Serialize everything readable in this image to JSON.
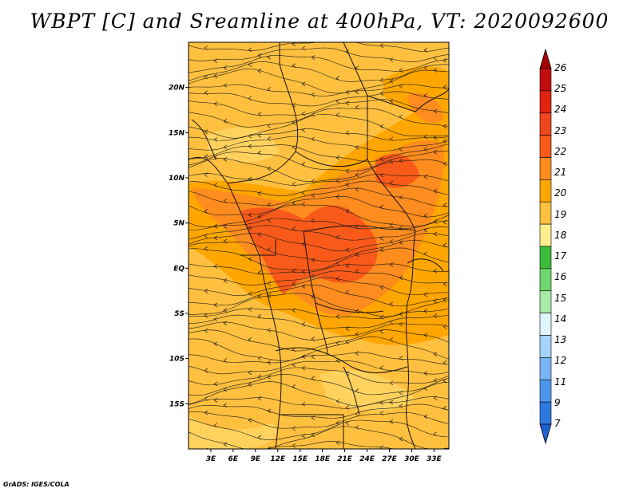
{
  "title": "WBPT [C] and Sreamline at 400hPa, VT: 2020092600",
  "credit": "GrADS: IGES/COLA",
  "map": {
    "lon_range": [
      0,
      35
    ],
    "lat_range": [
      -20,
      25
    ],
    "x_ticks": [
      "3E",
      "6E",
      "9E",
      "12E",
      "15E",
      "18E",
      "21E",
      "24E",
      "27E",
      "30E",
      "33E"
    ],
    "x_tick_values": [
      3,
      6,
      9,
      12,
      15,
      18,
      21,
      24,
      27,
      30,
      33
    ],
    "y_ticks": [
      "20N",
      "15N",
      "10N",
      "5N",
      "EQ",
      "5S",
      "10S",
      "15S"
    ],
    "y_tick_values": [
      20,
      15,
      10,
      5,
      0,
      -5,
      -10,
      -15
    ],
    "base_color": "#FFC03F",
    "field_colors": {
      "t20": "#FFD25E",
      "t21": "#FFA600",
      "t22": "#FF8C1E",
      "t23": "#FA5A19"
    }
  },
  "colorbar": {
    "levels": [
      "26",
      "25",
      "24",
      "23",
      "22",
      "21",
      "20",
      "19",
      "18",
      "17",
      "16",
      "15",
      "14",
      "13",
      "12",
      "11",
      "9",
      "7"
    ],
    "colors": [
      "#A50000",
      "#C30D0D",
      "#E1230F",
      "#F0461E",
      "#FA5A19",
      "#FF8C1E",
      "#FFA600",
      "#FFC03F",
      "#FFEE8E",
      "#3BBB3B",
      "#6FD76F",
      "#A8EBA8",
      "#E0F7FF",
      "#A6D3FF",
      "#79B6F5",
      "#4D96EC",
      "#2D79E0",
      "#1E60D0"
    ]
  }
}
